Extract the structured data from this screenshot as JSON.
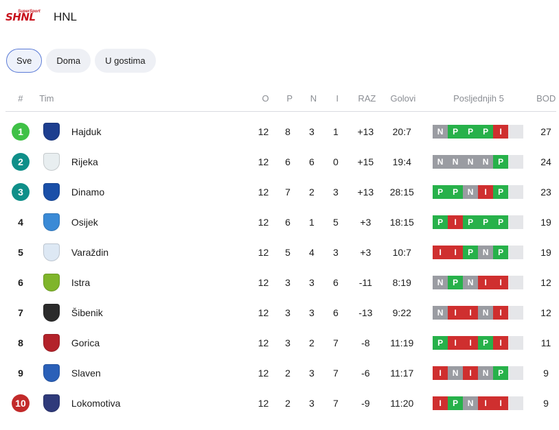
{
  "header": {
    "logo_text": "SHNL",
    "logo_sub": "SuperSport",
    "title": "HNL"
  },
  "tabs": [
    {
      "label": "Sve",
      "active": true
    },
    {
      "label": "Doma",
      "active": false
    },
    {
      "label": "U gostima",
      "active": false
    }
  ],
  "columns": {
    "rank": "#",
    "team": "Tim",
    "o": "O",
    "p": "P",
    "n": "N",
    "i": "I",
    "raz": "RAZ",
    "golovi": "Golovi",
    "last5": "Posljednjih 5",
    "bod": "BOD"
  },
  "colors": {
    "green": "#3fc146",
    "teal": "#0f8f89",
    "red": "#c22a2a",
    "form_win": "#27b14a",
    "form_draw": "#9a9ca2",
    "form_loss": "#cf2f2f"
  },
  "rows": [
    {
      "rank": "1",
      "badge": "green",
      "crest_color": "#1d3e8f",
      "crest_icon": "hajduk-crest-icon",
      "team": "Hajduk",
      "o": "12",
      "p": "8",
      "n": "3",
      "i": "1",
      "raz": "+13",
      "golovi": "20:7",
      "form": [
        "N",
        "P",
        "P",
        "P",
        "I"
      ],
      "bod": "27"
    },
    {
      "rank": "2",
      "badge": "teal",
      "crest_color": "#e8eef0",
      "crest_icon": "rijeka-crest-icon",
      "team": "Rijeka",
      "o": "12",
      "p": "6",
      "n": "6",
      "i": "0",
      "raz": "+15",
      "golovi": "19:4",
      "form": [
        "N",
        "N",
        "N",
        "N",
        "P"
      ],
      "bod": "24"
    },
    {
      "rank": "3",
      "badge": "teal",
      "crest_color": "#1a4fa8",
      "crest_icon": "dinamo-crest-icon",
      "team": "Dinamo",
      "o": "12",
      "p": "7",
      "n": "2",
      "i": "3",
      "raz": "+13",
      "golovi": "28:15",
      "form": [
        "P",
        "P",
        "N",
        "I",
        "P"
      ],
      "bod": "23"
    },
    {
      "rank": "4",
      "badge": "",
      "crest_color": "#3a8ad6",
      "crest_icon": "osijek-crest-icon",
      "team": "Osijek",
      "o": "12",
      "p": "6",
      "n": "1",
      "i": "5",
      "raz": "+3",
      "golovi": "18:15",
      "form": [
        "P",
        "I",
        "P",
        "P",
        "P"
      ],
      "bod": "19"
    },
    {
      "rank": "5",
      "badge": "",
      "crest_color": "#dde8f4",
      "crest_icon": "varazdin-crest-icon",
      "team": "Varaždin",
      "o": "12",
      "p": "5",
      "n": "4",
      "i": "3",
      "raz": "+3",
      "golovi": "10:7",
      "form": [
        "I",
        "I",
        "P",
        "N",
        "P"
      ],
      "bod": "19"
    },
    {
      "rank": "6",
      "badge": "",
      "crest_color": "#7fb52a",
      "crest_icon": "istra-crest-icon",
      "team": "Istra",
      "o": "12",
      "p": "3",
      "n": "3",
      "i": "6",
      "raz": "-11",
      "golovi": "8:19",
      "form": [
        "N",
        "P",
        "N",
        "I",
        "I"
      ],
      "bod": "12"
    },
    {
      "rank": "7",
      "badge": "",
      "crest_color": "#2b2b2b",
      "crest_icon": "sibenik-crest-icon",
      "team": "Šibenik",
      "o": "12",
      "p": "3",
      "n": "3",
      "i": "6",
      "raz": "-13",
      "golovi": "9:22",
      "form": [
        "N",
        "I",
        "I",
        "N",
        "I"
      ],
      "bod": "12"
    },
    {
      "rank": "8",
      "badge": "",
      "crest_color": "#b3222a",
      "crest_icon": "gorica-crest-icon",
      "team": "Gorica",
      "o": "12",
      "p": "3",
      "n": "2",
      "i": "7",
      "raz": "-8",
      "golovi": "11:19",
      "form": [
        "P",
        "I",
        "I",
        "P",
        "I"
      ],
      "bod": "11"
    },
    {
      "rank": "9",
      "badge": "",
      "crest_color": "#2a60b8",
      "crest_icon": "slaven-crest-icon",
      "team": "Slaven",
      "o": "12",
      "p": "2",
      "n": "3",
      "i": "7",
      "raz": "-6",
      "golovi": "11:17",
      "form": [
        "I",
        "N",
        "I",
        "N",
        "P"
      ],
      "bod": "9"
    },
    {
      "rank": "10",
      "badge": "red",
      "crest_color": "#2f3a7a",
      "crest_icon": "lokomotiva-crest-icon",
      "team": "Lokomotiva",
      "o": "12",
      "p": "2",
      "n": "3",
      "i": "7",
      "raz": "-9",
      "golovi": "11:20",
      "form": [
        "I",
        "P",
        "N",
        "I",
        "I"
      ],
      "bod": "9"
    }
  ]
}
